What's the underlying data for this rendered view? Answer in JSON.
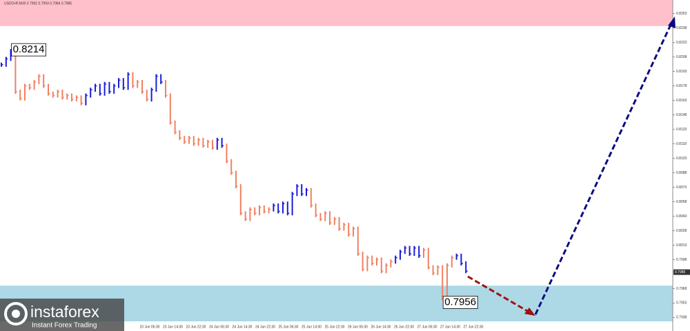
{
  "chart_data": {
    "type": "price-bars",
    "title": "USDCHF,M30  0.7992 0.7993 0.7984 0.7985",
    "values": [
      0.82,
      0.8206,
      0.8214,
      0.8172,
      0.8165,
      0.8178,
      0.8176,
      0.8182,
      0.8188,
      0.8178,
      0.817,
      0.8168,
      0.8172,
      0.8166,
      0.8168,
      0.8164,
      0.8166,
      0.816,
      0.8168,
      0.8174,
      0.8178,
      0.817,
      0.818,
      0.8172,
      0.8178,
      0.8184,
      0.8176,
      0.819,
      0.8178,
      0.8182,
      0.8172,
      0.8164,
      0.8174,
      0.8188,
      0.8182,
      0.8168,
      0.814,
      0.813,
      0.8124,
      0.812,
      0.8124,
      0.8118,
      0.8122,
      0.8116,
      0.812,
      0.8114,
      0.8122,
      0.8116,
      0.81,
      0.8088,
      0.8074,
      0.8046,
      0.804,
      0.805,
      0.8046,
      0.8052,
      0.8048,
      0.805,
      0.8054,
      0.8048,
      0.8056,
      0.8046,
      0.8066,
      0.8074,
      0.8066,
      0.807,
      0.8054,
      0.8044,
      0.804,
      0.8046,
      0.8036,
      0.804,
      0.803,
      0.8034,
      0.8024,
      0.803,
      0.8004,
      0.7988,
      0.8,
      0.7994,
      0.7998,
      0.7986,
      0.7992,
      0.7996,
      0.8,
      0.8006,
      0.801,
      0.8004,
      0.801,
      0.8002,
      0.8008,
      0.799,
      0.7984,
      0.799,
      0.7958,
      0.7992,
      0.8,
      0.8002,
      0.7994,
      0.7986
    ],
    "colors": [
      "#1a1adb",
      "#1a1adb",
      "#1a1adb",
      "#f08060",
      "#f08060",
      "#f08060",
      "#f08060",
      "#f08060",
      "#f08060",
      "#f08060",
      "#f08060",
      "#f08060",
      "#f08060",
      "#f08060",
      "#f08060",
      "#f08060",
      "#f08060",
      "#f08060",
      "#1a1adb",
      "#1a1adb",
      "#1a1adb",
      "#1a1adb",
      "#1a1adb",
      "#1a1adb",
      "#1a1adb",
      "#1a1adb",
      "#1a1adb",
      "#1a1adb",
      "#f08060",
      "#f08060",
      "#f08060",
      "#f08060",
      "#1a1adb",
      "#1a1adb",
      "#1a1adb",
      "#f08060",
      "#f08060",
      "#f08060",
      "#f08060",
      "#f08060",
      "#f08060",
      "#f08060",
      "#f08060",
      "#f08060",
      "#f08060",
      "#f08060",
      "#1a1adb",
      "#1a1adb",
      "#f08060",
      "#f08060",
      "#f08060",
      "#f08060",
      "#f08060",
      "#f08060",
      "#f08060",
      "#f08060",
      "#f08060",
      "#f08060",
      "#1a1adb",
      "#1a1adb",
      "#1a1adb",
      "#1a1adb",
      "#1a1adb",
      "#1a1adb",
      "#1a1adb",
      "#1a1adb",
      "#f08060",
      "#f08060",
      "#f08060",
      "#f08060",
      "#f08060",
      "#f08060",
      "#f08060",
      "#f08060",
      "#f08060",
      "#f08060",
      "#f08060",
      "#f08060",
      "#f08060",
      "#f08060",
      "#f08060",
      "#f08060",
      "#f08060",
      "#f08060",
      "#1a1adb",
      "#1a1adb",
      "#1a1adb",
      "#1a1adb",
      "#1a1adb",
      "#1a1adb",
      "#f08060",
      "#f08060",
      "#f08060",
      "#f08060",
      "#f08060",
      "#f08060",
      "#f08060",
      "#1a1adb",
      "#1a1adb",
      "#1a1adb"
    ],
    "ylim": [
      0.7924,
      0.8267
    ],
    "yticks": [
      0.8253,
      0.8238,
      0.8223,
      0.8208,
      0.8193,
      0.8178,
      0.8163,
      0.8148,
      0.8133,
      0.8118,
      0.8103,
      0.8088,
      0.8073,
      0.8058,
      0.8043,
      0.8028,
      0.8013,
      0.7998,
      0.7968,
      0.7953,
      0.7938
    ],
    "xtick_labels": [
      "23 Jun 06:30",
      "23 Jun 14:30",
      "23 Jun 22:30",
      "24 Jun 06:30",
      "24 Jun 14:30",
      "24 Jun 22:30",
      "25 Jun 06:30",
      "25 Jun 14:30",
      "25 Jun 22:30",
      "26 Jun 06:30",
      "26 Jun 14:30",
      "26 Jun 22:30",
      "27 Jun 06:30",
      "27 Jun 14:30",
      "27 Jun 22:30"
    ],
    "zones": [
      {
        "from": 0.824,
        "to": 0.8267,
        "color": "#ffc0cb"
      },
      {
        "from": 0.7934,
        "to": 0.7971,
        "color": "#add8e6"
      }
    ],
    "annotations": [
      {
        "text": "0.8214",
        "index": 2
      },
      {
        "text": "0.7956",
        "index": 94
      }
    ],
    "last_price": 0.7985
  },
  "logo": {
    "name": "instaforex",
    "tagline": "Instant Forex Trading"
  }
}
